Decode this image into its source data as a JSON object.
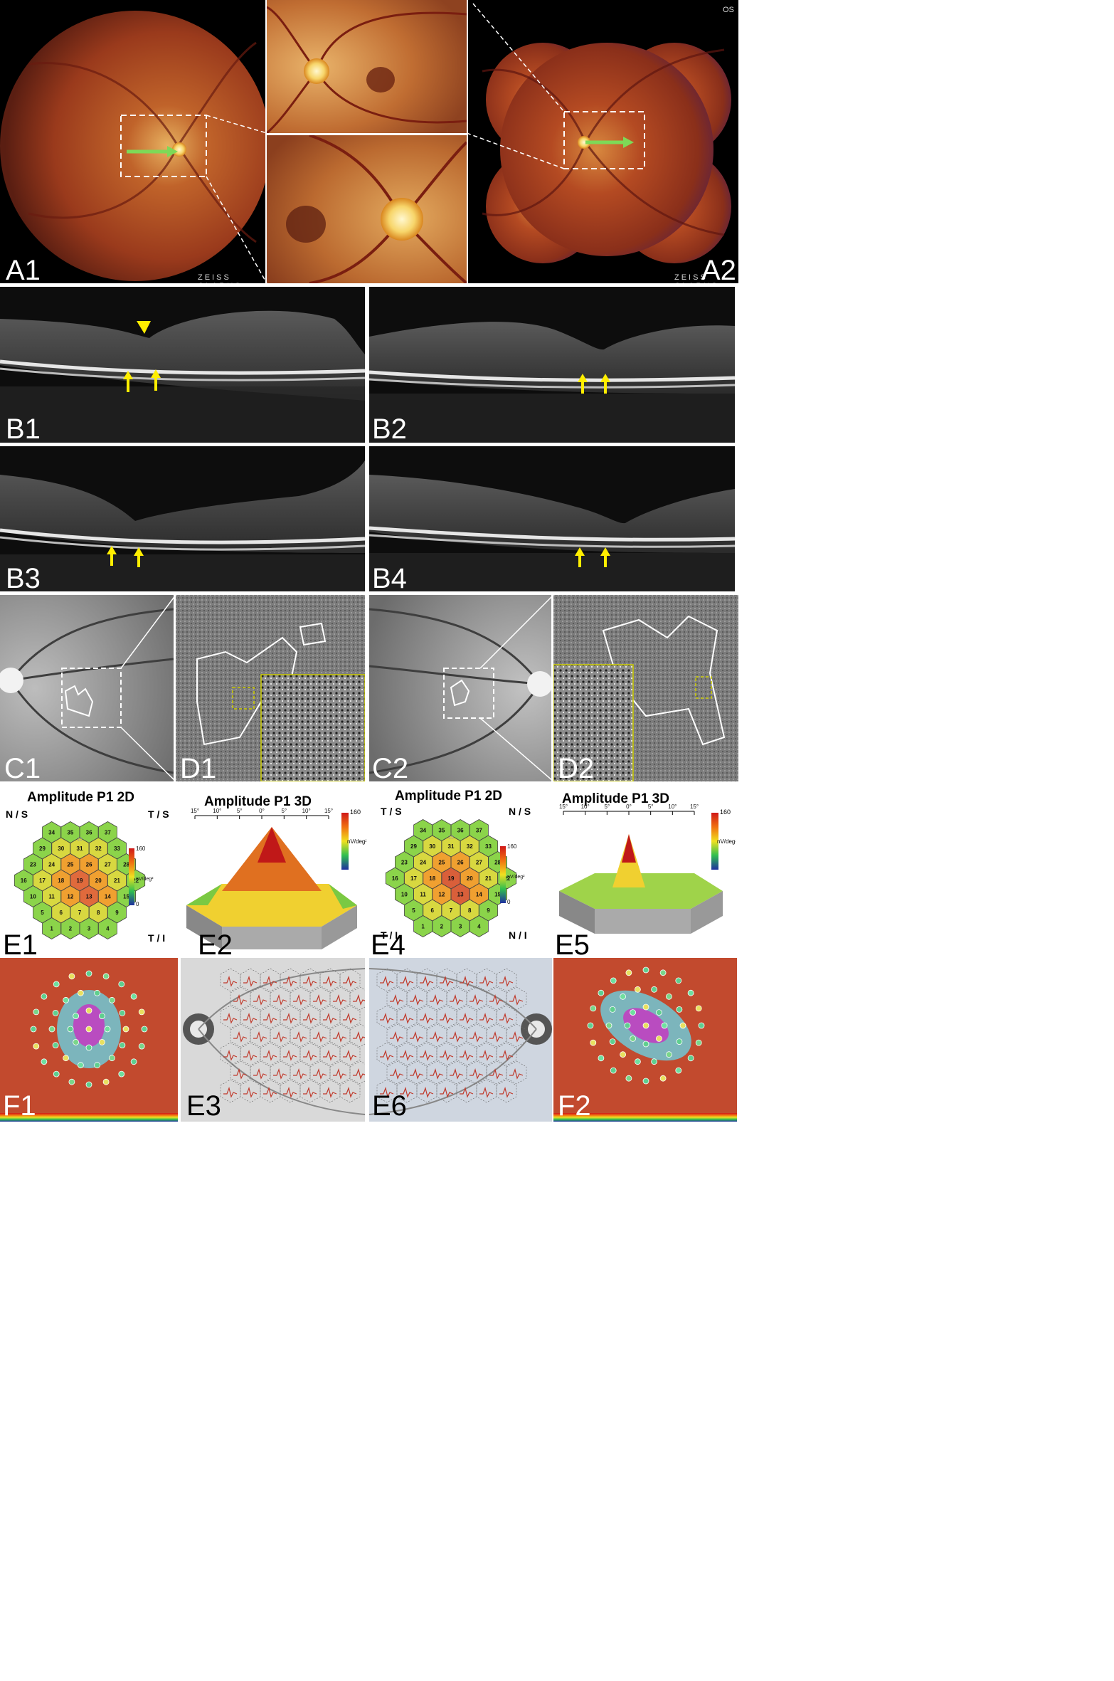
{
  "labels": {
    "a1": "A1",
    "a2": "A2",
    "b1": "B1",
    "b2": "B2",
    "b3": "B3",
    "b4": "B4",
    "c1": "C1",
    "c2": "C2",
    "d1": "D1",
    "d2": "D2",
    "e1": "E1",
    "e2": "E2",
    "e3": "E3",
    "e4": "E4",
    "e5": "E5",
    "e6": "E6",
    "f1": "F1",
    "f2": "F2"
  },
  "fundus": {
    "os_label": "OS",
    "watermark": "ZEISS CLARUS"
  },
  "mferg": {
    "title_2d": "Amplitude P1 2D",
    "title_3d": "Amplitude P1 3D",
    "left": {
      "ns": "N / S",
      "ts": "T / S",
      "ti": "T / I"
    },
    "right": {
      "ts": "T / S",
      "ns": "N / S",
      "ti": "T / I",
      "ni": "N / I"
    },
    "scale_top": "160",
    "scale_unit": "nV/deg²",
    "scale_bottom": "0",
    "ring_label": "15",
    "ruler": [
      "15°",
      "10°",
      "5°",
      "0°",
      "5°",
      "10°",
      "15°"
    ],
    "hex_numbers": [
      "1",
      "2",
      "3",
      "4",
      "5",
      "6",
      "7",
      "8",
      "9",
      "10",
      "11",
      "12",
      "13",
      "14",
      "15",
      "16",
      "17",
      "18",
      "19",
      "20",
      "21",
      "22",
      "23",
      "24",
      "25",
      "26",
      "27",
      "28",
      "29",
      "30",
      "31",
      "32",
      "33",
      "34",
      "35",
      "36",
      "37"
    ]
  },
  "colors": {
    "arrow_green": "#7ed957",
    "arrow_yellow": "#ffee00",
    "dashed_box": "#ffffff",
    "trace_red": "#c0392b"
  }
}
